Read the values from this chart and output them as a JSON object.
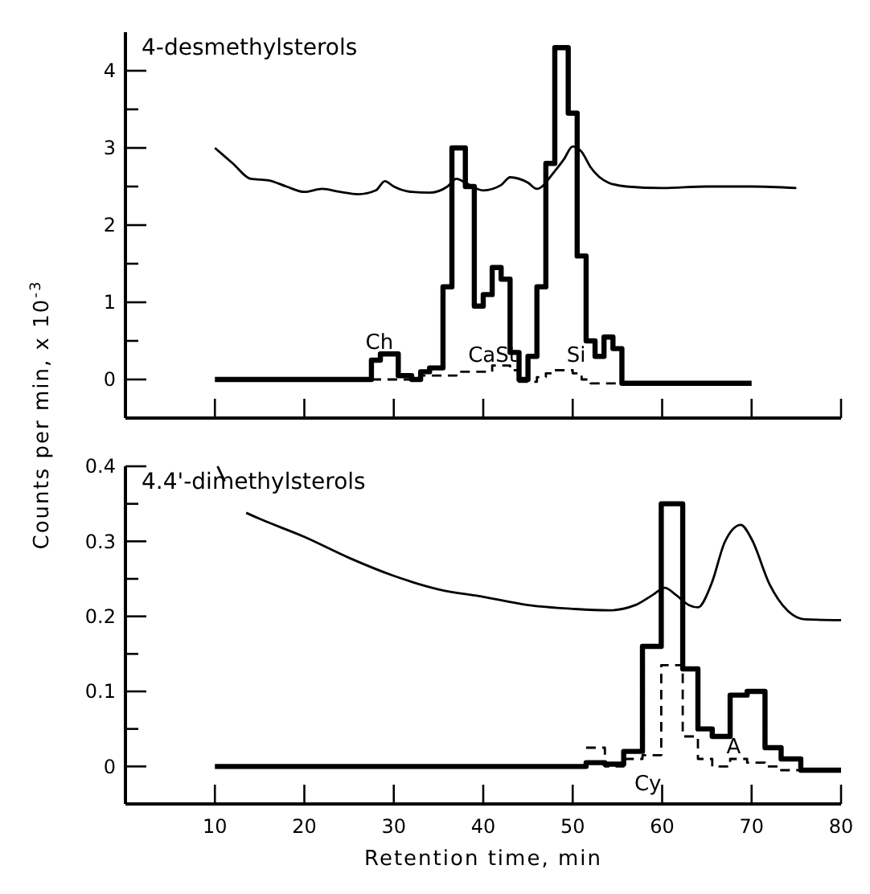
{
  "chart_data": [
    {
      "type": "step",
      "title": "4-desmethylsterols",
      "ylabel": "Counts per min,  x 10$^{-3}$",
      "xlim": [
        0,
        80
      ],
      "ylim": [
        -0.5,
        4.5
      ],
      "xticks": [
        10,
        20,
        30,
        40,
        50,
        60,
        70,
        80
      ],
      "yticks": [
        0,
        {
          "value": 0.5,
          "label": null
        },
        1,
        {
          "value": 1.5,
          "label": null
        },
        2,
        {
          "value": 2.5,
          "label": null
        },
        3,
        {
          "value": 3.5,
          "label": null
        },
        4
      ],
      "tick_labels": "y",
      "series": [
        {
          "type": "step",
          "color": "#000000",
          "line_style": "solid",
          "x": [
            10,
            27.5,
            28.5,
            30.5,
            32,
            33,
            34,
            35.5,
            36.5,
            38,
            39,
            40,
            41,
            42,
            43,
            44,
            45,
            46,
            47,
            48,
            49.5,
            50.5,
            51.5,
            52.5,
            53.5,
            54.5,
            55.5,
            70
          ],
          "values": [
            0,
            0.25,
            0.33,
            0.05,
            0,
            0.1,
            0.15,
            1.2,
            3.0,
            2.5,
            0.95,
            1.1,
            1.45,
            1.3,
            0.35,
            0,
            0.3,
            1.2,
            2.8,
            4.3,
            3.45,
            1.6,
            0.5,
            0.3,
            0.55,
            0.4,
            -0.05,
            -0.05
          ]
        },
        {
          "type": "step",
          "color": "#000000",
          "line_style": "dashed",
          "x": [
            27.5,
            33,
            37,
            41,
            43,
            44,
            46,
            47,
            48,
            50,
            51,
            52,
            55.5
          ],
          "values": [
            0,
            0.05,
            0.1,
            0.18,
            0.12,
            -0.03,
            0.03,
            0.08,
            0.12,
            0.08,
            0,
            -0.05,
            -0.05
          ]
        },
        {
          "type": "line",
          "color": "#000000",
          "line_style": "solid",
          "x": [
            10,
            12,
            14,
            16,
            18,
            20,
            22,
            24,
            26,
            28,
            29,
            30,
            32,
            34,
            36,
            37,
            38,
            40,
            42,
            43,
            45,
            46,
            48,
            49,
            50,
            51,
            52,
            54,
            56,
            60,
            65,
            70,
            75
          ],
          "values": [
            3.0,
            2.8,
            2.6,
            2.58,
            2.5,
            2.43,
            2.47,
            2.43,
            2.4,
            2.45,
            2.57,
            2.5,
            2.43,
            2.42,
            2.5,
            2.6,
            2.55,
            2.45,
            2.52,
            2.62,
            2.55,
            2.47,
            2.7,
            2.85,
            3.02,
            2.95,
            2.75,
            2.55,
            2.5,
            2.48,
            2.5,
            2.5,
            2.48
          ]
        }
      ],
      "annotations": [
        "Ch",
        "CaSt",
        "Si"
      ]
    },
    {
      "type": "step",
      "title": "4.4'-dimethylsterols",
      "xlabel": "Retention time,   min",
      "xlim": [
        0,
        80
      ],
      "ylim": [
        -0.05,
        0.4
      ],
      "xticks": [
        10,
        20,
        30,
        40,
        50,
        60,
        70,
        80
      ],
      "yticks": [
        0,
        {
          "value": 0.05,
          "label": null
        },
        0.1,
        {
          "value": 0.15,
          "label": null
        },
        0.2,
        {
          "value": 0.25,
          "label": null
        },
        0.3,
        {
          "value": 0.35,
          "label": null
        },
        0.4
      ],
      "series": [
        {
          "type": "step",
          "color": "#000000",
          "line_style": "solid",
          "x": [
            10,
            51.5,
            53.6,
            55.7,
            57.8,
            59.9,
            62.3,
            64,
            65.6,
            67.6,
            69.5,
            71.5,
            73.3,
            75.5,
            80
          ],
          "values": [
            0,
            0.005,
            0.003,
            0.02,
            0.16,
            0.35,
            0.13,
            0.05,
            0.04,
            0.095,
            0.1,
            0.025,
            0.01,
            -0.005,
            -0.005
          ]
        },
        {
          "type": "step",
          "color": "#000000",
          "line_style": "dashed",
          "x": [
            51.5,
            53.6,
            55.7,
            57.8,
            59.9,
            62.3,
            64,
            65.6,
            67.6,
            69.5,
            71.5,
            73.3,
            76
          ],
          "values": [
            0.025,
            0,
            0.01,
            0.015,
            0.135,
            0.04,
            0.01,
            0,
            0.01,
            0.005,
            0,
            -0.005,
            -0.005
          ]
        },
        {
          "type": "line",
          "color": "#000000",
          "line_style": "solid",
          "x": [
            10.3,
            11.1,
            12,
            13.5,
            15,
            20,
            25,
            30,
            35,
            40,
            45,
            50,
            54,
            57,
            59,
            60.3,
            61.5,
            63,
            64,
            65.5,
            67,
            68.8,
            70,
            72,
            74,
            76,
            80
          ],
          "values": [
            0.4,
            0.38,
            null,
            0.338,
            0.33,
            0.306,
            0.278,
            0.254,
            0.236,
            0.226,
            0.215,
            0.21,
            0.208,
            0.215,
            0.229,
            0.238,
            0.229,
            0.215,
            0.212,
            0.243,
            0.299,
            0.322,
            0.303,
            0.243,
            0.208,
            0.196,
            0.195
          ]
        }
      ],
      "annotations": [
        "Cy",
        "A"
      ]
    }
  ]
}
